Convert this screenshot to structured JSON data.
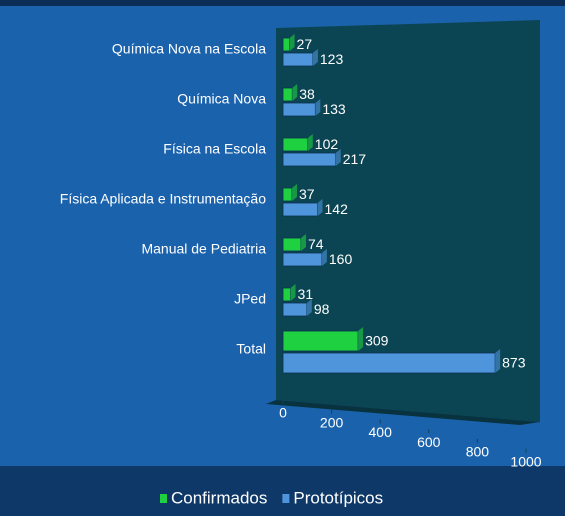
{
  "chart_data": {
    "type": "barh",
    "categories": [
      "Química Nova na Escola",
      "Química Nova",
      "Física na Escola",
      "Física Aplicada e Instrumentação",
      "Manual de Pediatria",
      "JPed",
      "Total"
    ],
    "series": [
      {
        "name": "Confirmados",
        "color": "#1fd040",
        "values": [
          27,
          38,
          102,
          37,
          74,
          31,
          309
        ]
      },
      {
        "name": "Prototípicos",
        "color": "#4f95dc",
        "values": [
          123,
          133,
          217,
          142,
          160,
          98,
          873
        ]
      }
    ],
    "xlim": [
      0,
      1000
    ],
    "xticks": [
      0,
      200,
      400,
      600,
      800,
      1000
    ],
    "legend": "bottom"
  }
}
